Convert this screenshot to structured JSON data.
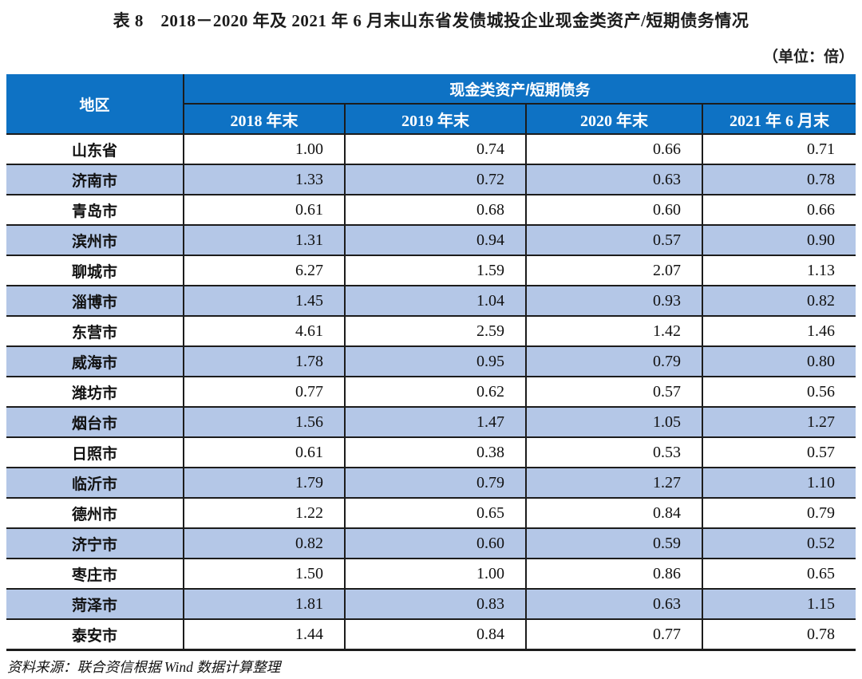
{
  "page": {
    "title": "表 8　2018－2020 年及 2021 年 6 月末山东省发债城投企业现金类资产/短期债务情况",
    "unit_note": "（单位：倍）",
    "source_note": "资料来源：联合资信根据 Wind 数据计算整理"
  },
  "table": {
    "region_header": "地区",
    "group_header": "现金类资产/短期债务",
    "period_headers": [
      "2018 年末",
      "2019 年末",
      "2020 年末",
      "2021 年 6 月末"
    ],
    "rows": [
      {
        "region": "山东省",
        "values": [
          "1.00",
          "0.74",
          "0.66",
          "0.71"
        ]
      },
      {
        "region": "济南市",
        "values": [
          "1.33",
          "0.72",
          "0.63",
          "0.78"
        ]
      },
      {
        "region": "青岛市",
        "values": [
          "0.61",
          "0.68",
          "0.60",
          "0.66"
        ]
      },
      {
        "region": "滨州市",
        "values": [
          "1.31",
          "0.94",
          "0.57",
          "0.90"
        ]
      },
      {
        "region": "聊城市",
        "values": [
          "6.27",
          "1.59",
          "2.07",
          "1.13"
        ]
      },
      {
        "region": "淄博市",
        "values": [
          "1.45",
          "1.04",
          "0.93",
          "0.82"
        ]
      },
      {
        "region": "东营市",
        "values": [
          "4.61",
          "2.59",
          "1.42",
          "1.46"
        ]
      },
      {
        "region": "威海市",
        "values": [
          "1.78",
          "0.95",
          "0.79",
          "0.80"
        ]
      },
      {
        "region": "潍坊市",
        "values": [
          "0.77",
          "0.62",
          "0.57",
          "0.56"
        ]
      },
      {
        "region": "烟台市",
        "values": [
          "1.56",
          "1.47",
          "1.05",
          "1.27"
        ]
      },
      {
        "region": "日照市",
        "values": [
          "0.61",
          "0.38",
          "0.53",
          "0.57"
        ]
      },
      {
        "region": "临沂市",
        "values": [
          "1.79",
          "0.79",
          "1.27",
          "1.10"
        ]
      },
      {
        "region": "德州市",
        "values": [
          "1.22",
          "0.65",
          "0.84",
          "0.79"
        ]
      },
      {
        "region": "济宁市",
        "values": [
          "0.82",
          "0.60",
          "0.59",
          "0.52"
        ]
      },
      {
        "region": "枣庄市",
        "values": [
          "1.50",
          "1.00",
          "0.86",
          "0.65"
        ]
      },
      {
        "region": "菏泽市",
        "values": [
          "1.81",
          "0.83",
          "0.63",
          "1.15"
        ]
      },
      {
        "region": "泰安市",
        "values": [
          "1.44",
          "0.84",
          "0.77",
          "0.78"
        ]
      }
    ]
  },
  "colors": {
    "header_blue": "#0e72c4",
    "row_alt_blue": "#b4c7e7",
    "border_dark": "#1c1c1c"
  }
}
